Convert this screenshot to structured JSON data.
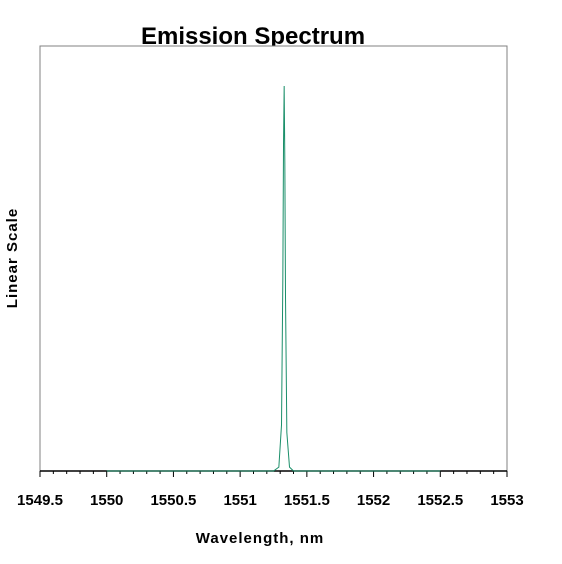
{
  "chart_data": {
    "type": "line",
    "title": "Emission Spectrum",
    "xlabel": "Wavelength, nm",
    "ylabel": "Linear Scale",
    "xlim": [
      1549.5,
      1553
    ],
    "ylim": [
      0,
      1
    ],
    "grid": false,
    "y_tick_labels_shown": false,
    "x_ticks": [
      "1549.5",
      "1550",
      "1550.5",
      "1551",
      "1551.5",
      "1552",
      "1552.5",
      "1553"
    ],
    "series": [
      {
        "color": "#1b8f6a",
        "x": [
          1550.0,
          1551.25,
          1551.29,
          1551.31,
          1551.32,
          1551.325,
          1551.33,
          1551.335,
          1551.34,
          1551.35,
          1551.37,
          1551.4,
          1552.5
        ],
        "y": [
          0,
          0,
          0.01,
          0.12,
          0.5,
          0.85,
          1.0,
          0.8,
          0.45,
          0.1,
          0.01,
          0,
          0
        ]
      }
    ]
  }
}
